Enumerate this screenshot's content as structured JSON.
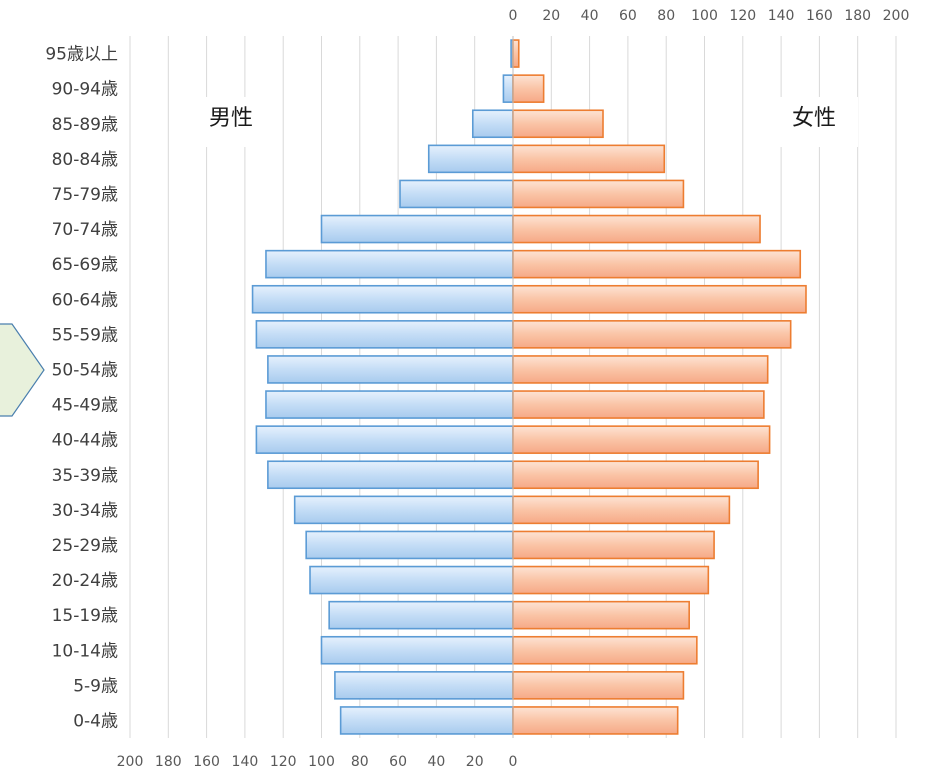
{
  "chart_data": {
    "type": "bar",
    "orientation": "horizontal",
    "layout": "population-pyramid",
    "categories": [
      "0-4歳",
      "5-9歳",
      "10-14歳",
      "15-19歳",
      "20-24歳",
      "25-29歳",
      "30-34歳",
      "35-39歳",
      "40-44歳",
      "45-49歳",
      "50-54歳",
      "55-59歳",
      "60-64歳",
      "65-69歳",
      "70-74歳",
      "75-79歳",
      "80-84歳",
      "85-89歳",
      "90-94歳",
      "95歳以上"
    ],
    "series": [
      {
        "name": "男性",
        "values": [
          90,
          93,
          100,
          96,
          106,
          108,
          114,
          128,
          134,
          129,
          128,
          134,
          136,
          129,
          100,
          59,
          44,
          21,
          5,
          1
        ],
        "color": "#5b9bd5"
      },
      {
        "name": "女性",
        "values": [
          86,
          89,
          96,
          92,
          102,
          105,
          113,
          128,
          134,
          131,
          133,
          145,
          153,
          150,
          129,
          89,
          79,
          47,
          16,
          3
        ],
        "color": "#ed7d31"
      }
    ],
    "left_axis": {
      "ticks": [
        "200",
        "180",
        "160",
        "140",
        "120",
        "100",
        "80",
        "60",
        "40",
        "20",
        "0"
      ],
      "range": [
        0,
        200
      ]
    },
    "right_axis": {
      "ticks": [
        "0",
        "20",
        "40",
        "60",
        "80",
        "100",
        "120",
        "140",
        "160",
        "180",
        "200"
      ],
      "range": [
        0,
        200
      ]
    },
    "grid": true
  }
}
